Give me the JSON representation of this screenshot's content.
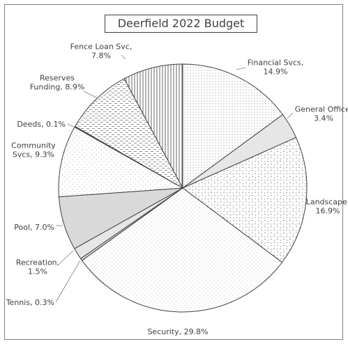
{
  "chart_data": {
    "type": "pie",
    "title": "Deerfield 2022 Budget",
    "slices": [
      {
        "name": "Financial Svcs",
        "value": 14.9,
        "label": [
          "Financial Svcs,",
          "14.9%"
        ],
        "pattern": "dots"
      },
      {
        "name": "General Office",
        "value": 3.4,
        "label": [
          "General Office,",
          "3.4%"
        ],
        "pattern": "lightgray"
      },
      {
        "name": "Landscape",
        "value": 16.9,
        "label": [
          "Landscape,",
          "16.9%"
        ],
        "pattern": "confetti"
      },
      {
        "name": "Security",
        "value": 29.8,
        "label": [
          "Security, 29.8%"
        ],
        "pattern": "sparse"
      },
      {
        "name": "Tennis",
        "value": 0.3,
        "label": [
          "Tennis, 0.3%"
        ],
        "pattern": "gray"
      },
      {
        "name": "Recreation",
        "value": 1.5,
        "label": [
          "Recreation,",
          "1.5%"
        ],
        "pattern": "lightgray"
      },
      {
        "name": "Pool",
        "value": 7.0,
        "label": [
          "Pool, 7.0%"
        ],
        "pattern": "gray"
      },
      {
        "name": "Community Svcs",
        "value": 9.3,
        "label": [
          "Community",
          "Svcs, 9.3%"
        ],
        "pattern": "sparse2"
      },
      {
        "name": "Deeds",
        "value": 0.1,
        "label": [
          "Deeds, 0.1%"
        ],
        "pattern": "black"
      },
      {
        "name": "Reserves Funding",
        "value": 8.9,
        "label": [
          "Reserves",
          "Funding, 8.9%"
        ],
        "pattern": "dashes"
      },
      {
        "name": "Fence Loan Svc",
        "value": 7.8,
        "label": [
          "Fence Loan Svc,",
          "7.8%"
        ],
        "pattern": "vlines"
      }
    ],
    "legend": "none",
    "colors": {
      "outline": "#404040",
      "text": "#404040",
      "background": "#ffffff"
    }
  }
}
